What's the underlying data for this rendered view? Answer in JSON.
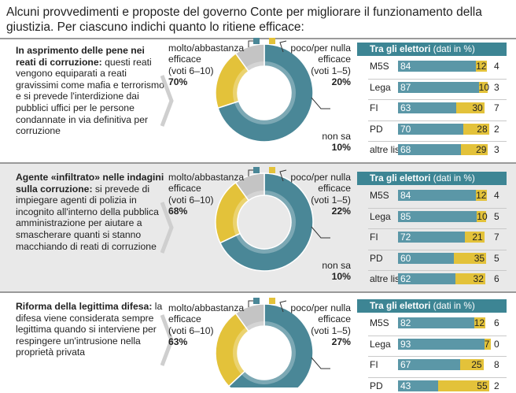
{
  "title": "Alcuni provvedimenti e proposte del governo Conte per migliorare il funzionamento della giustizia. Per ciascuno indichi quanto lo ritiene efficace:",
  "colors": {
    "molto": "#4a8797",
    "poco": "#e3c23a",
    "non_sa": "#c4c4c4",
    "header": "#3d8594",
    "bar_blue": "#5b97a7"
  },
  "labels": {
    "molto": "molto/abbastanza efficace",
    "molto_voti": "(voti 6–10)",
    "poco": "poco/per nulla efficace",
    "poco_voti": "(voti 1–5)",
    "non_sa": "non sa",
    "table_header": "Tra gli elettori",
    "table_header_unit": "(dati in %)"
  },
  "panels": [
    {
      "heading": "In asprimento delle pene nei reati di corruzione:",
      "body": "questi reati vengono equiparati a reati gravissimi come mafia e terrorismo e si prevede l'interdizione dai pubblici uffici per le persone condannate in via definitiva per corruzione",
      "molto_pct": "70%",
      "poco_pct": "20%",
      "non_sa_pct": "10%",
      "header_bold": false
    },
    {
      "heading": "Agente «infiltrato» nelle indagini sulla corruzione:",
      "body": "si prevede di impiegare agenti di polizia in incognito all'interno della pubblica amministrazione per aiutare a smascherare quanti si stanno macchiando di reati di corruzione",
      "molto_pct": "68%",
      "poco_pct": "22%",
      "non_sa_pct": "10%",
      "header_bold": true
    },
    {
      "heading": "Riforma della legittima difesa:",
      "body": "la difesa viene considerata sempre legittima quando si interviene per respingere un'intrusione nella proprietà privata",
      "molto_pct": "63%",
      "poco_pct": "27%",
      "non_sa_pct": "",
      "header_bold": true
    }
  ],
  "chart_data": [
    {
      "type": "pie",
      "categories": [
        "molto/abbastanza efficace",
        "poco/per nulla efficace",
        "non sa"
      ],
      "values": [
        70,
        20,
        10
      ]
    },
    {
      "type": "bar",
      "categories": [
        "M5S",
        "Lega",
        "FI",
        "PD",
        "altre liste"
      ],
      "series": [
        {
          "name": "molto/abbastanza efficace",
          "values": [
            84,
            87,
            63,
            70,
            68
          ]
        },
        {
          "name": "poco/per nulla efficace",
          "values": [
            12,
            10,
            30,
            28,
            29
          ]
        },
        {
          "name": "non sa",
          "values": [
            4,
            3,
            7,
            2,
            3
          ]
        }
      ]
    },
    {
      "type": "pie",
      "categories": [
        "molto/abbastanza efficace",
        "poco/per nulla efficace",
        "non sa"
      ],
      "values": [
        68,
        22,
        10
      ]
    },
    {
      "type": "bar",
      "categories": [
        "M5S",
        "Lega",
        "FI",
        "PD",
        "altre liste"
      ],
      "series": [
        {
          "name": "molto/abbastanza efficace",
          "values": [
            84,
            85,
            72,
            60,
            62
          ]
        },
        {
          "name": "poco/per nulla efficace",
          "values": [
            12,
            10,
            21,
            35,
            32
          ]
        },
        {
          "name": "non sa",
          "values": [
            4,
            5,
            7,
            5,
            6
          ]
        }
      ]
    },
    {
      "type": "pie",
      "categories": [
        "molto/abbastanza efficace",
        "poco/per nulla efficace",
        "non sa"
      ],
      "values": [
        63,
        27,
        10
      ]
    },
    {
      "type": "bar",
      "categories": [
        "M5S",
        "Lega",
        "FI",
        "PD"
      ],
      "series": [
        {
          "name": "molto/abbastanza efficace",
          "values": [
            82,
            93,
            67,
            43
          ]
        },
        {
          "name": "poco/per nulla efficace",
          "values": [
            12,
            7,
            25,
            55
          ]
        },
        {
          "name": "non sa",
          "values": [
            6,
            0,
            8,
            2
          ]
        }
      ]
    }
  ]
}
